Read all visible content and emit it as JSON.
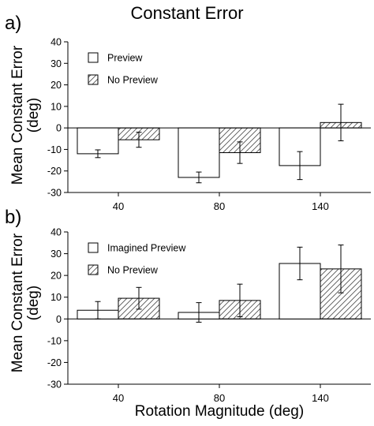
{
  "figure": {
    "title": "Constant Error",
    "ylabel": "Mean Constant Error (deg)",
    "xlabel": "Rotation Magnitude (deg)"
  },
  "chart_data": [
    {
      "type": "bar",
      "panel_label": "a)",
      "categories": [
        "40",
        "80",
        "140"
      ],
      "ylabel": "Mean Constant Error (deg)",
      "xlabel": "",
      "ylim": [
        -30,
        40
      ],
      "yticks": [
        40,
        30,
        20,
        10,
        0,
        -10,
        -20,
        -30
      ],
      "legend_position": "top-left",
      "series": [
        {
          "name": "Preview",
          "pattern": "open",
          "values": [
            -12,
            -23,
            -17.5
          ],
          "errors": [
            1.8,
            2.5,
            6.5
          ]
        },
        {
          "name": "No Preview",
          "pattern": "hatched",
          "values": [
            -5.5,
            -11.5,
            2.5
          ],
          "errors": [
            3.5,
            5,
            8.5
          ]
        }
      ]
    },
    {
      "type": "bar",
      "panel_label": "b)",
      "categories": [
        "40",
        "80",
        "140"
      ],
      "ylabel": "Mean Constant Error (deg)",
      "xlabel": "Rotation Magnitude (deg)",
      "ylim": [
        -30,
        40
      ],
      "yticks": [
        40,
        30,
        20,
        10,
        0,
        -10,
        -20,
        -30
      ],
      "legend_position": "top-left",
      "series": [
        {
          "name": "Imagined Preview",
          "pattern": "open",
          "values": [
            4,
            3,
            25.5
          ],
          "errors": [
            4,
            4.5,
            7.5
          ]
        },
        {
          "name": "No Preview",
          "pattern": "hatched",
          "values": [
            9.5,
            8.5,
            23
          ],
          "errors": [
            5,
            7.5,
            11
          ]
        }
      ]
    }
  ]
}
